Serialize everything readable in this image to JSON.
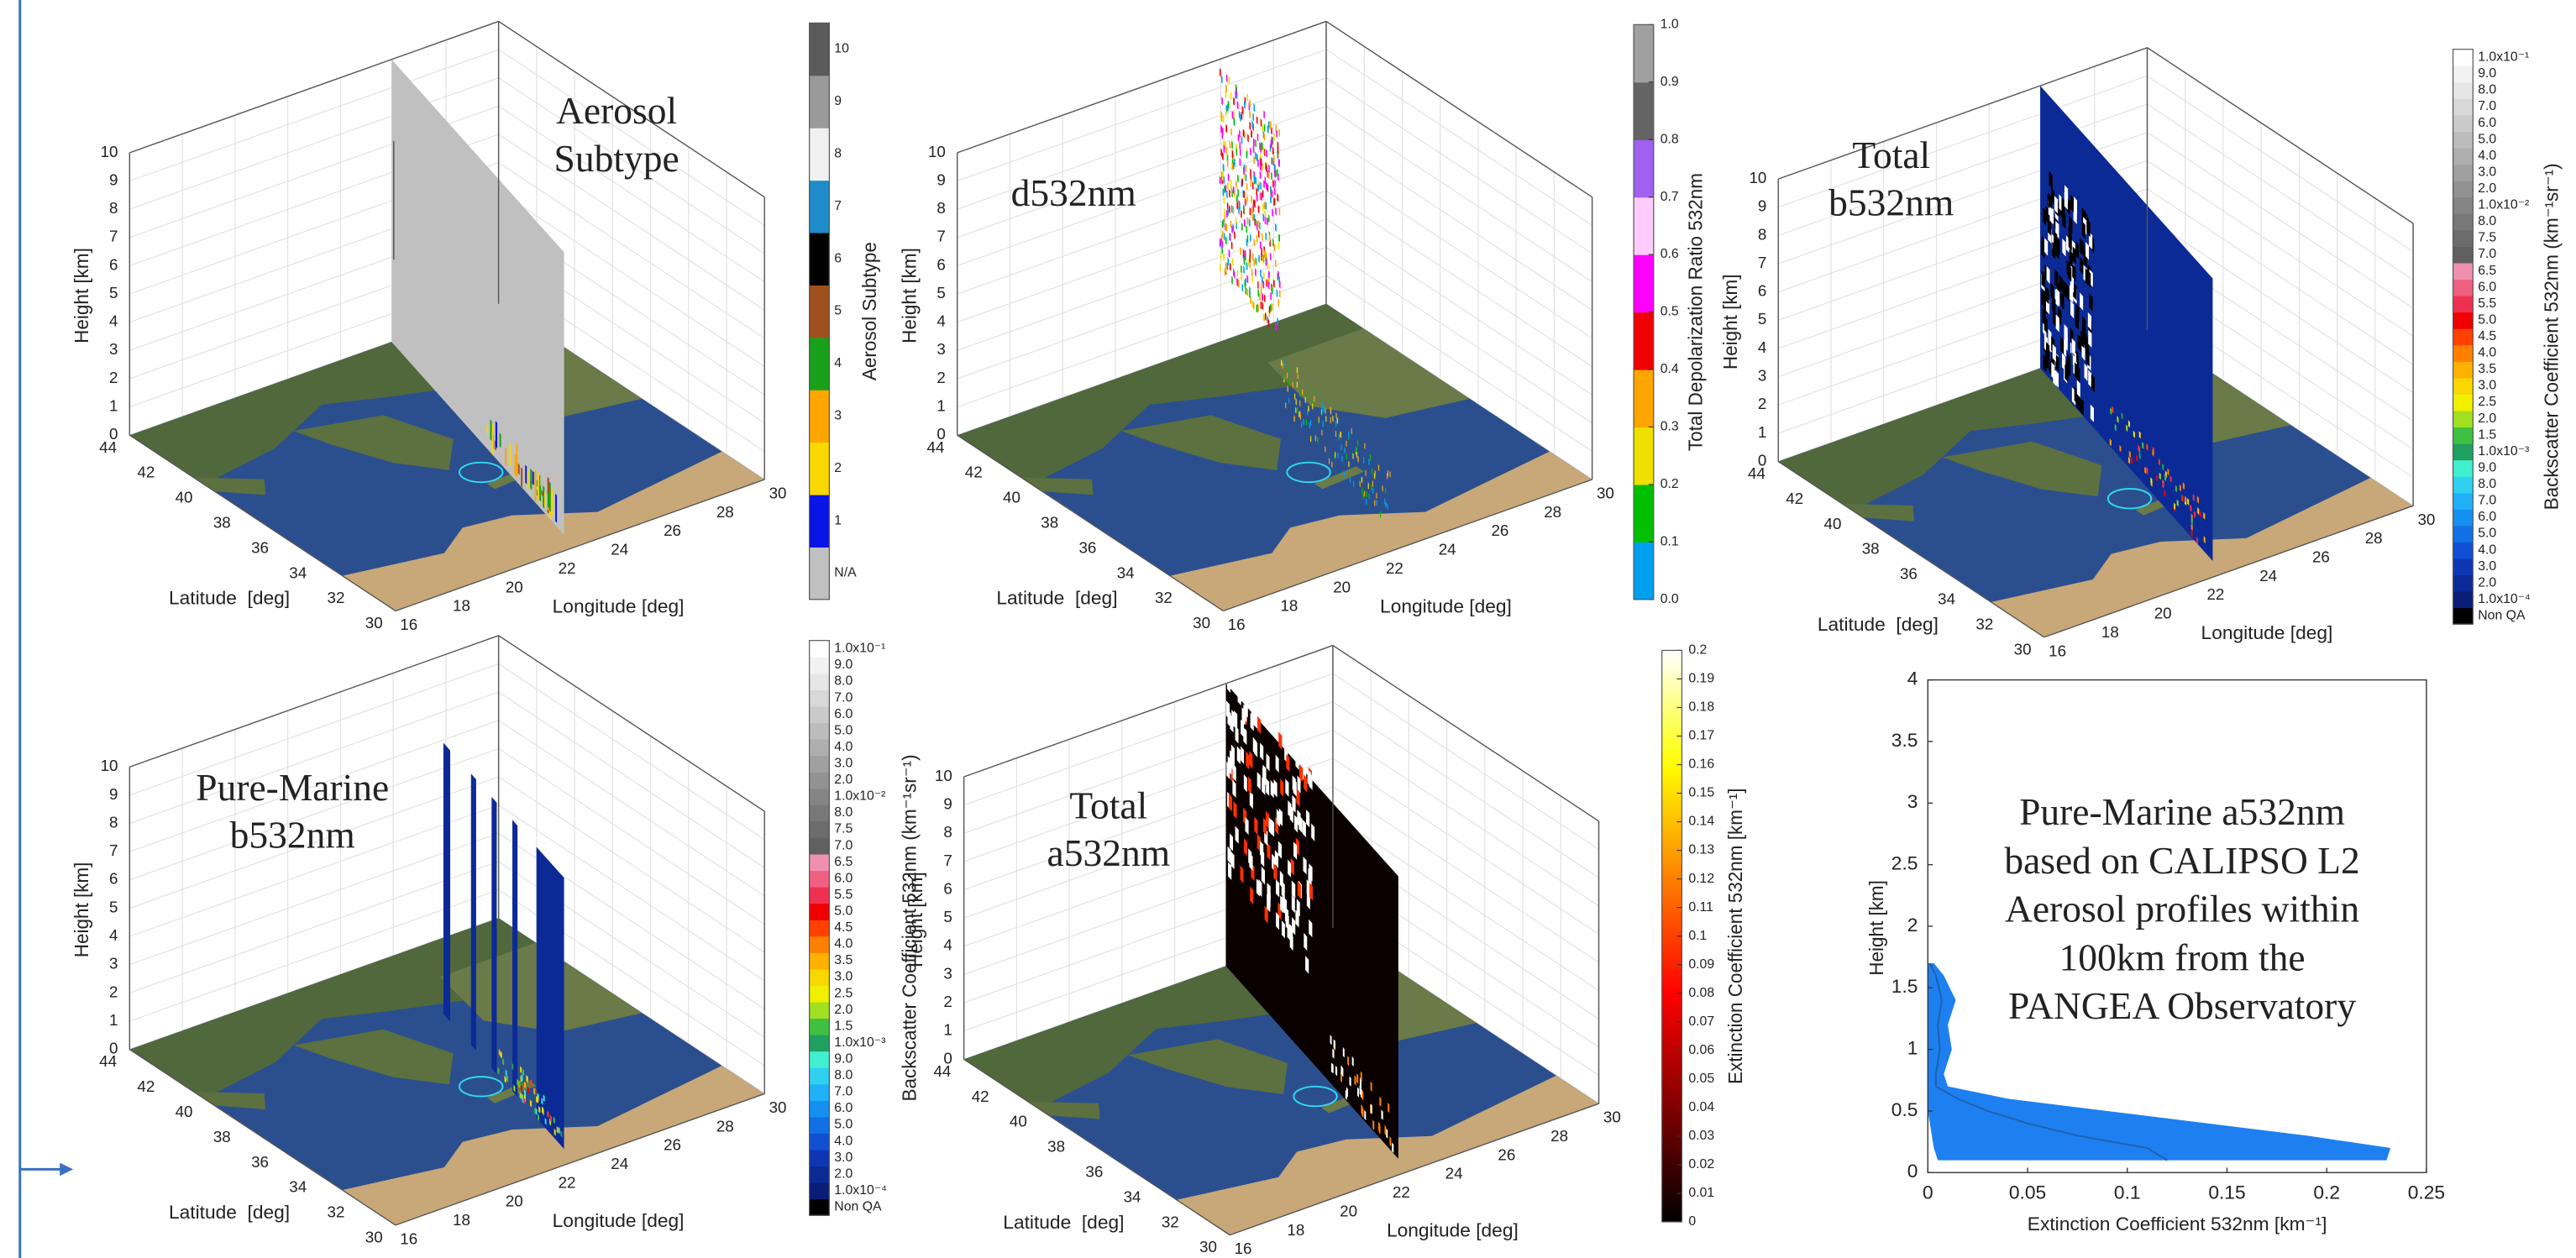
{
  "chart_data": [
    {
      "type": "curtain3d",
      "title": [
        "Aerosol",
        "Subtype"
      ],
      "zlabel": "Height [km]",
      "ylabel": "Latitude  [deg]",
      "xlabel": "Longitude [deg]",
      "zlim": [
        0,
        10
      ],
      "zticks": [
        0,
        1,
        2,
        3,
        4,
        5,
        6,
        7,
        8,
        9,
        10
      ],
      "ylim": [
        30,
        44
      ],
      "yticks": [
        30,
        32,
        34,
        36,
        38,
        40,
        42,
        44
      ],
      "xlim": [
        16,
        30
      ],
      "xticks": [
        16,
        18,
        20,
        22,
        24,
        26,
        28,
        30
      ],
      "grid": true,
      "colorbar": {
        "label": "Aerosol Subtype",
        "ticks": [
          "N/A",
          1,
          2,
          3,
          4,
          5,
          6,
          7,
          8,
          9,
          10
        ],
        "colors": [
          "#c0c0c0",
          "#0a14e6",
          "#f8d800",
          "#ffa500",
          "#19a019",
          "#a0501e",
          "#000000",
          "#1e8cc8",
          "#f0f0f0",
          "#9a9a9a",
          "#5a5a5a"
        ]
      }
    },
    {
      "type": "curtain3d",
      "title": [
        "d532nm"
      ],
      "zlabel": "Height [km]",
      "ylabel": "Latitude  [deg]",
      "xlabel": "Longitude [deg]",
      "zlim": [
        0,
        10
      ],
      "zticks": [
        0,
        1,
        2,
        3,
        4,
        5,
        6,
        7,
        8,
        9,
        10
      ],
      "ylim": [
        30,
        44
      ],
      "yticks": [
        30,
        32,
        34,
        36,
        38,
        40,
        42,
        44
      ],
      "xlim": [
        16,
        30
      ],
      "xticks": [
        16,
        18,
        20,
        22,
        24,
        26,
        28,
        30
      ],
      "grid": true,
      "colorbar": {
        "label": "Total Depolarization Ratio 532nm",
        "clim": [
          0,
          1
        ],
        "ticks": [
          {
            "value": 0,
            "label": "0.0"
          },
          0.1,
          0.2,
          0.3,
          0.4,
          0.5,
          0.6,
          0.7,
          0.8,
          0.9,
          {
            "value": 1,
            "label": "1.0"
          }
        ],
        "colors": [
          "#00a0f0",
          "#00c000",
          "#f0e000",
          "#ffa500",
          "#f00000",
          "#ff00ff",
          "#ffccff",
          "#a060f0",
          "#646464",
          "#a0a0a0"
        ]
      }
    },
    {
      "type": "curtain3d",
      "title": [
        "Total",
        "b532nm"
      ],
      "zlabel": "Height [km]",
      "ylabel": "Latitude  [deg]",
      "xlabel": "Longitude [deg]",
      "zlim": [
        0,
        10
      ],
      "zticks": [
        0,
        1,
        2,
        3,
        4,
        5,
        6,
        7,
        8,
        9,
        10
      ],
      "ylim": [
        30,
        44
      ],
      "yticks": [
        30,
        32,
        34,
        36,
        38,
        40,
        42,
        44
      ],
      "xlim": [
        16,
        30
      ],
      "xticks": [
        16,
        18,
        20,
        22,
        24,
        26,
        28,
        30
      ],
      "grid": true,
      "colorbar": {
        "label": "Backscatter Coefficient 532nm (km⁻¹sr⁻¹)",
        "ticks": [
          "Non QA",
          "1.0x10⁻⁴",
          "2.0",
          "3.0",
          "4.0",
          "5.0",
          "6.0",
          "7.0",
          "8.0",
          "9.0",
          "1.0x10⁻³",
          "1.5",
          "2.0",
          "2.5",
          "3.0",
          "3.5",
          "4.0",
          "4.5",
          "5.0",
          "5.5",
          "6.0",
          "6.5",
          "7.0",
          "7.5",
          "8.0",
          "1.0x10⁻²",
          "2.0",
          "3.0",
          "4.0",
          "5.0",
          "6.0",
          "7.0",
          "8.0",
          "9.0",
          "1.0x10⁻¹"
        ],
        "colors": [
          "#000000",
          "#0a1e78",
          "#0c2a96",
          "#0e36b4",
          "#1050d2",
          "#1070e6",
          "#1490f0",
          "#20b0f8",
          "#30d0f0",
          "#40f0d0",
          "#20a060",
          "#40c040",
          "#a0e020",
          "#f0f000",
          "#f8d800",
          "#ffb000",
          "#ff8000",
          "#ff4000",
          "#f00000",
          "#f03050",
          "#f06080",
          "#f090b0",
          "#606060",
          "#6c6c6c",
          "#787878",
          "#858585",
          "#929292",
          "#a0a0a0",
          "#aeaeae",
          "#bcbcbc",
          "#cacaca",
          "#d8d8d8",
          "#e6e6e6",
          "#f2f2f2",
          "#ffffff"
        ]
      }
    },
    {
      "type": "curtain3d",
      "title": [
        "Pure-Marine",
        "b532nm"
      ],
      "zlabel": "Height [km]",
      "ylabel": "Latitude  [deg]",
      "xlabel": "Longitude [deg]",
      "zlim": [
        0,
        10
      ],
      "zticks": [
        0,
        1,
        2,
        3,
        4,
        5,
        6,
        7,
        8,
        9,
        10
      ],
      "ylim": [
        30,
        44
      ],
      "yticks": [
        30,
        32,
        34,
        36,
        38,
        40,
        42,
        44
      ],
      "xlim": [
        16,
        30
      ],
      "xticks": [
        16,
        18,
        20,
        22,
        24,
        26,
        28,
        30
      ],
      "grid": true,
      "colorbar": {
        "label": "Backscatter Coefficient 532nm (km⁻¹sr⁻¹)",
        "ticks": [
          "Non QA",
          "1.0x10⁻⁴",
          "2.0",
          "3.0",
          "4.0",
          "5.0",
          "6.0",
          "7.0",
          "8.0",
          "9.0",
          "1.0x10⁻³",
          "1.5",
          "2.0",
          "2.5",
          "3.0",
          "3.5",
          "4.0",
          "4.5",
          "5.0",
          "5.5",
          "6.0",
          "6.5",
          "7.0",
          "7.5",
          "8.0",
          "1.0x10⁻²",
          "2.0",
          "3.0",
          "4.0",
          "5.0",
          "6.0",
          "7.0",
          "8.0",
          "9.0",
          "1.0x10⁻¹"
        ],
        "colors": [
          "#000000",
          "#0a1e78",
          "#0c2a96",
          "#0e36b4",
          "#1050d2",
          "#1070e6",
          "#1490f0",
          "#20b0f8",
          "#30d0f0",
          "#40f0d0",
          "#20a060",
          "#40c040",
          "#a0e020",
          "#f0f000",
          "#f8d800",
          "#ffb000",
          "#ff8000",
          "#ff4000",
          "#f00000",
          "#f03050",
          "#f06080",
          "#f090b0",
          "#606060",
          "#6c6c6c",
          "#787878",
          "#858585",
          "#929292",
          "#a0a0a0",
          "#aeaeae",
          "#bcbcbc",
          "#cacaca",
          "#d8d8d8",
          "#e6e6e6",
          "#f2f2f2",
          "#ffffff"
        ]
      }
    },
    {
      "type": "curtain3d",
      "title": [
        "Total",
        "a532nm"
      ],
      "zlabel": "Height [km]",
      "ylabel": "Latitude  [deg]",
      "xlabel": "Longitude [deg]",
      "zlim": [
        0,
        10
      ],
      "zticks": [
        0,
        1,
        2,
        3,
        4,
        5,
        6,
        7,
        8,
        9,
        10
      ],
      "ylim": [
        30,
        44
      ],
      "yticks": [
        30,
        32,
        34,
        36,
        38,
        40,
        42,
        44
      ],
      "xlim": [
        16,
        30
      ],
      "xticks": [
        16,
        18,
        20,
        22,
        24,
        26,
        28,
        30
      ],
      "grid": true,
      "colorbar": {
        "label": "Extinction Coefficient 532nm [km⁻¹]",
        "clim": [
          0,
          0.2
        ],
        "continuous": true,
        "ticks": [
          0,
          0.01,
          0.02,
          0.03,
          0.04,
          0.05,
          0.06,
          0.07,
          0.08,
          0.09,
          0.1,
          0.11,
          0.12,
          0.13,
          0.14,
          0.15,
          0.16,
          0.17,
          0.18,
          0.19,
          0.2
        ],
        "colors": [
          "#000000",
          "#800000",
          "#ff0000",
          "#ff8000",
          "#ffff00",
          "#ffffff"
        ]
      }
    },
    {
      "type": "area",
      "text": [
        "Pure-Marine a532nm",
        "based on CALIPSO L2",
        "Aerosol profiles within",
        "100km from the",
        "PANGEA Observatory"
      ],
      "xlabel": "Extinction Coefficient 532nm [km⁻¹]",
      "ylabel": "Height [km]",
      "xlim": [
        0,
        0.25
      ],
      "xticks": [
        0,
        0.05,
        0.1,
        0.15,
        0.2,
        0.25
      ],
      "ylim": [
        0,
        4
      ],
      "yticks": [
        0,
        0.5,
        1,
        1.5,
        2,
        2.5,
        3,
        3.5,
        4
      ],
      "y": [
        0.1,
        0.2,
        0.3,
        0.4,
        0.5,
        0.6,
        0.7,
        0.8,
        1.0,
        1.2,
        1.4,
        1.6,
        1.7
      ],
      "x_high": [
        0.23,
        0.232,
        0.19,
        0.14,
        0.09,
        0.04,
        0.01,
        0.008,
        0.012,
        0.01,
        0.014,
        0.008,
        0.003
      ],
      "x_low": [
        0.005,
        0.003,
        0.002,
        0.001,
        0,
        0,
        0,
        0,
        0,
        0,
        0,
        0,
        0
      ],
      "x_mean": [
        0.12,
        0.11,
        0.075,
        0.05,
        0.03,
        0.015,
        0.004,
        0.004,
        0.006,
        0.005,
        0.007,
        0.004,
        0.001
      ],
      "fill": "#1e80f0",
      "line_color": "#2060b0"
    }
  ]
}
